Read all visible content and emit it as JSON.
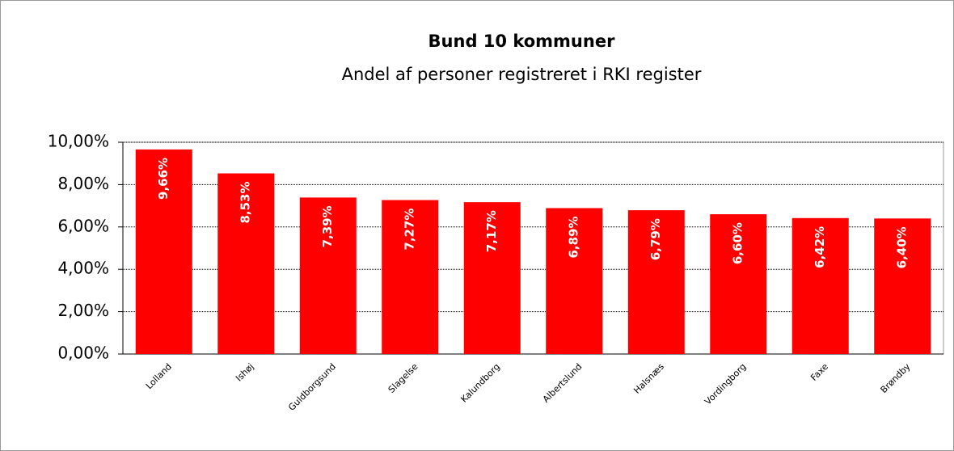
{
  "chart_data": {
    "type": "bar",
    "title": "Bund 10 kommuner",
    "subtitle": "Andel af personer registreret i RKI register",
    "categories": [
      "Lolland",
      "Ishøj",
      "Guldborgsund",
      "Slagelse",
      "Kalundborg",
      "Albertslund",
      "Halsnæs",
      "Vordingborg",
      "Faxe",
      "Brøndby"
    ],
    "values": [
      9.66,
      8.53,
      7.39,
      7.27,
      7.17,
      6.89,
      6.79,
      6.6,
      6.42,
      6.4
    ],
    "value_labels": [
      "9,66%",
      "8,53%",
      "7,39%",
      "7,27%",
      "7,17%",
      "6,89%",
      "6,79%",
      "6,60%",
      "6,42%",
      "6,40%"
    ],
    "color": "#ff0000",
    "ylim": [
      0,
      10
    ],
    "yticks": [
      {
        "value": 0,
        "label": "0,00%"
      },
      {
        "value": 2,
        "label": "2,00%"
      },
      {
        "value": 4,
        "label": "4,00%"
      },
      {
        "value": 6,
        "label": "6,00%"
      },
      {
        "value": 8,
        "label": "8,00%"
      },
      {
        "value": 10,
        "label": "10,00%"
      }
    ],
    "grid": true
  }
}
